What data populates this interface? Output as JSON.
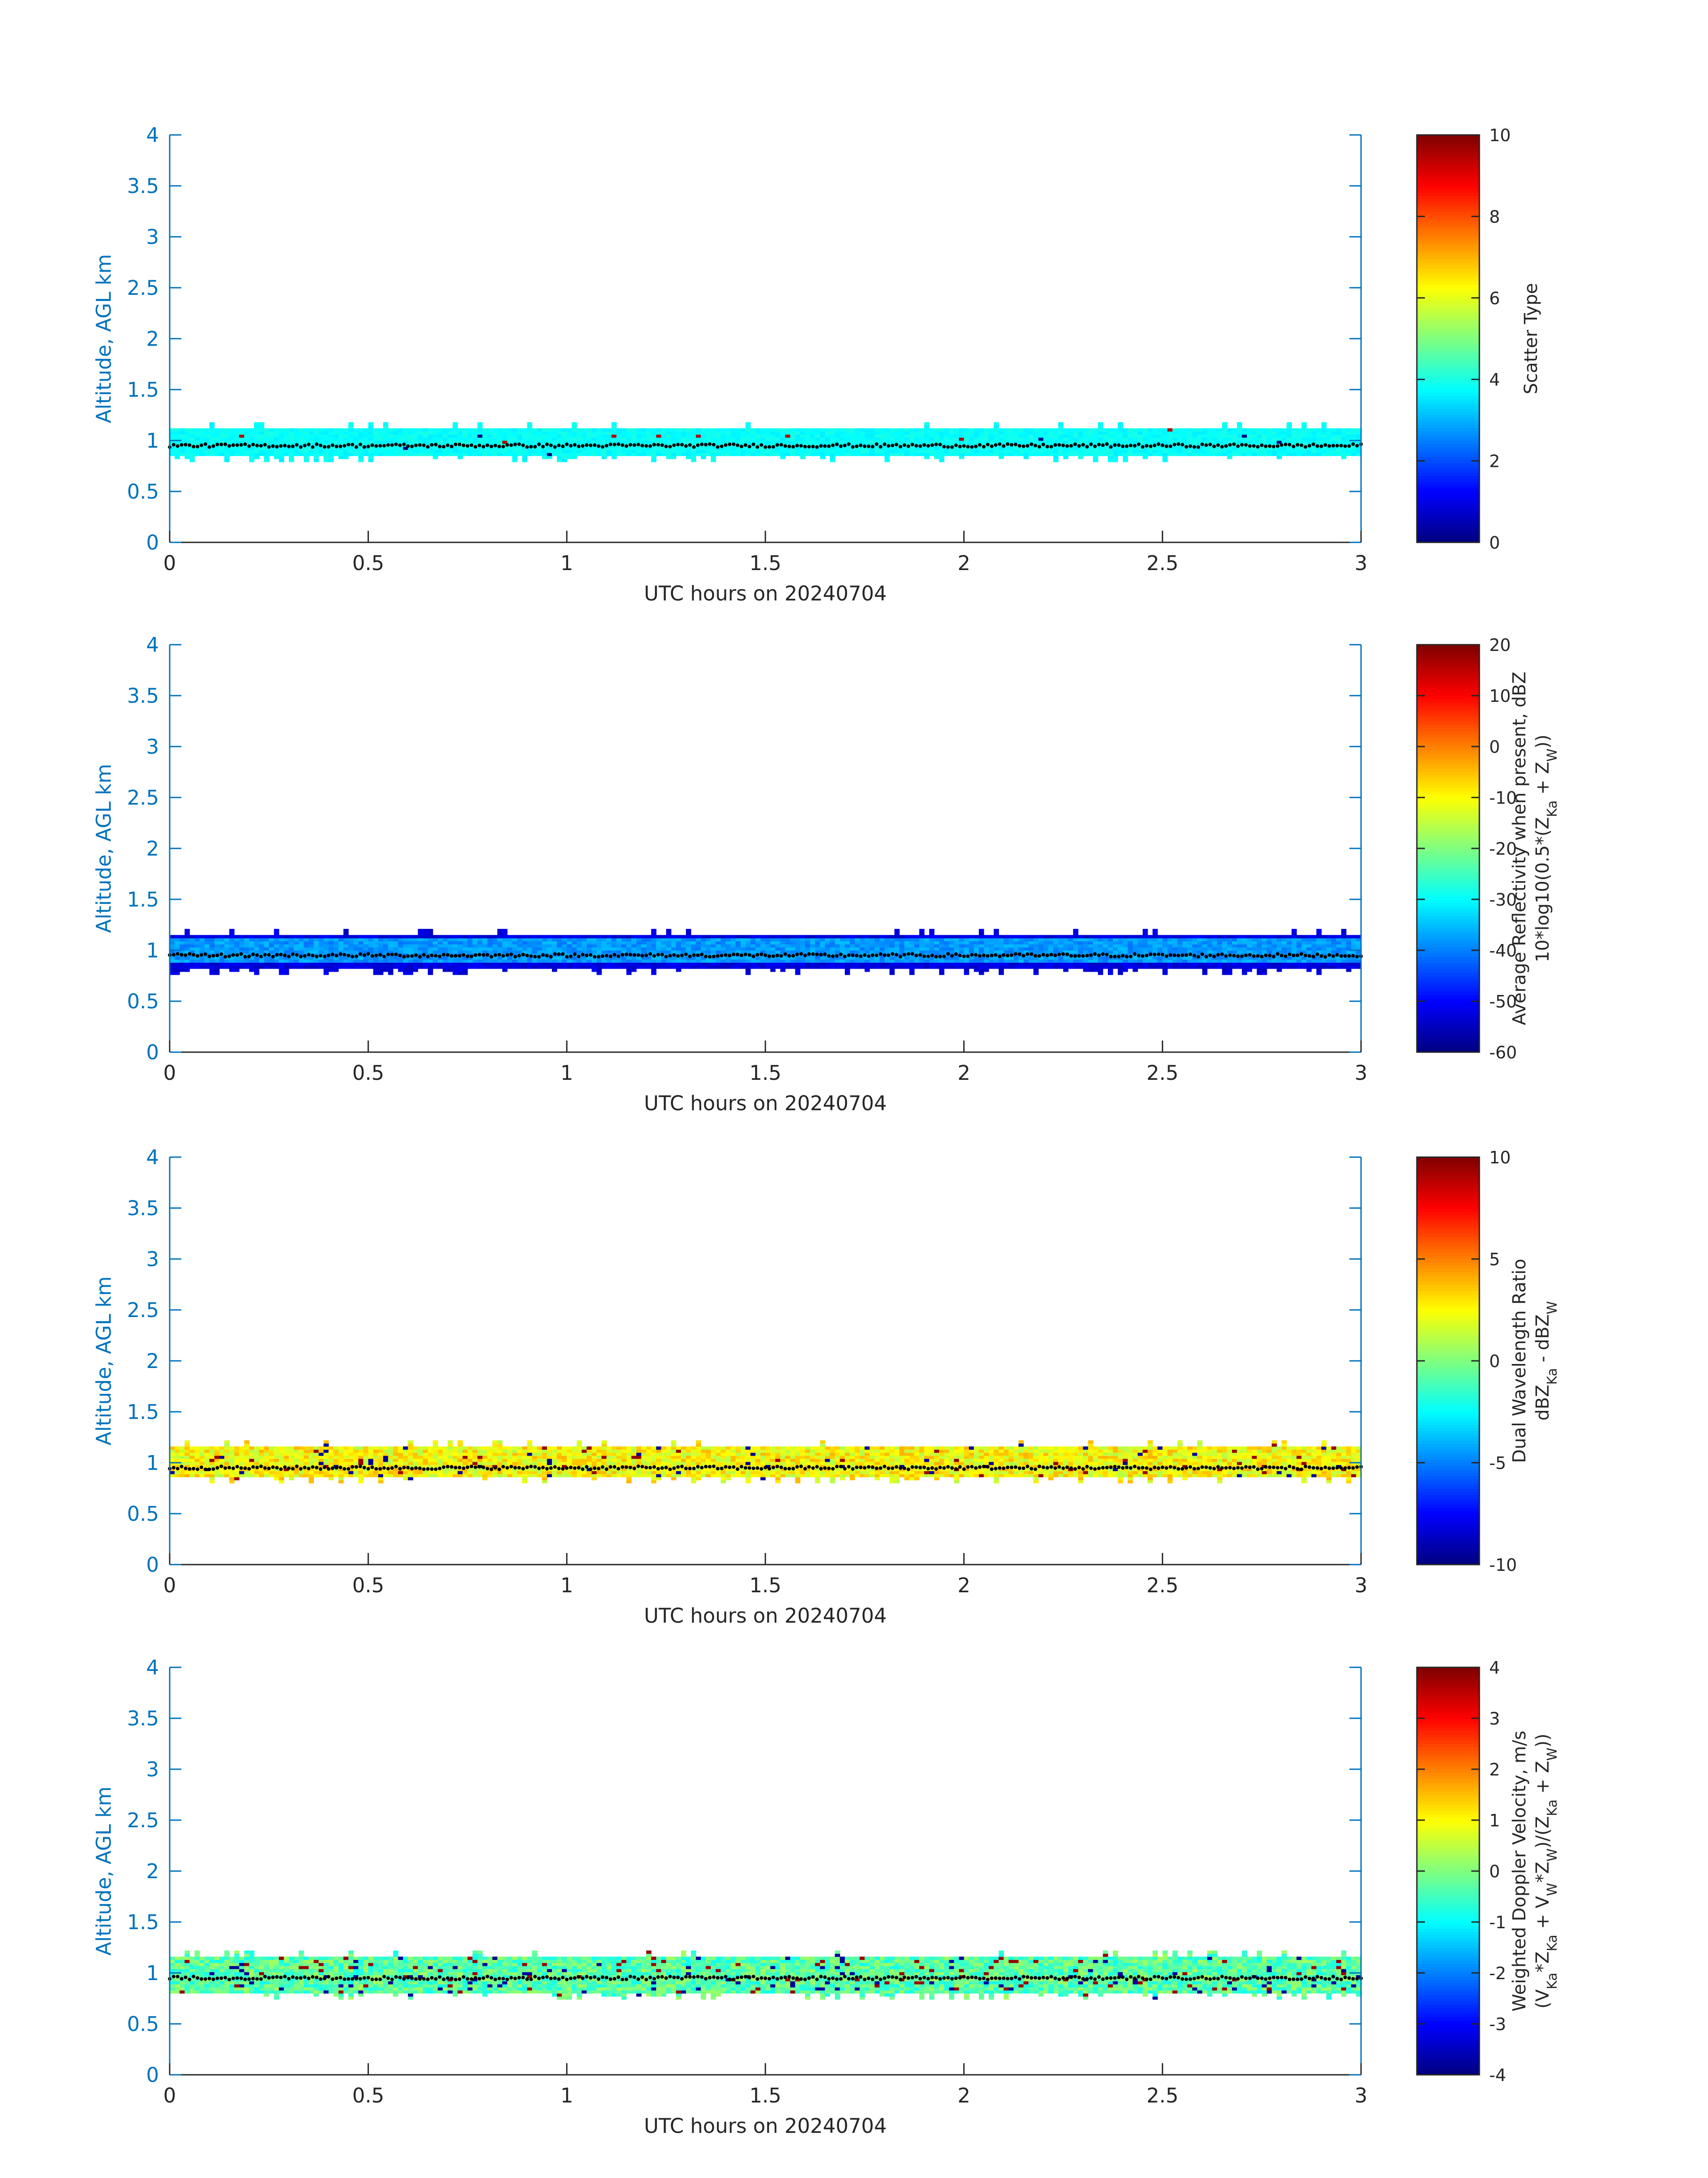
{
  "chart_data": [
    {
      "type": "heatmap",
      "title": "",
      "xlabel": "UTC hours on 20240704",
      "ylabel": "Altitude, AGL km",
      "xlim": [
        0,
        3
      ],
      "ylim": [
        0,
        4
      ],
      "xticks": [
        "0",
        "0.5",
        "1",
        "1.5",
        "2",
        "2.5",
        "3"
      ],
      "yticks": [
        "0",
        "0.5",
        "1",
        "1.5",
        "2",
        "2.5",
        "3",
        "3.5",
        "4"
      ],
      "colormap": "jet",
      "clim": [
        0,
        10
      ],
      "colorbar_ticks": [
        "0",
        "2",
        "4",
        "6",
        "8",
        "10"
      ],
      "colorbar_label_lines": [
        "Scatter Type"
      ],
      "band": {
        "bottom_km": 0.85,
        "top_km": 1.12,
        "dominant_value": 3.8,
        "variability": 0.2,
        "outlier_rate": 0.005
      },
      "cloud_base_km": 0.95
    },
    {
      "type": "heatmap",
      "title": "",
      "xlabel": "UTC hours on 20240704",
      "ylabel": "Altitude, AGL km",
      "xlim": [
        0,
        3
      ],
      "ylim": [
        0,
        4
      ],
      "xticks": [
        "0",
        "0.5",
        "1",
        "1.5",
        "2",
        "2.5",
        "3"
      ],
      "yticks": [
        "0",
        "0.5",
        "1",
        "1.5",
        "2",
        "2.5",
        "3",
        "3.5",
        "4"
      ],
      "colormap": "jet",
      "clim": [
        -60,
        20
      ],
      "colorbar_ticks": [
        "-60",
        "-50",
        "-40",
        "-30",
        "-20",
        "-10",
        "0",
        "10",
        "20"
      ],
      "colorbar_label_lines": [
        "Average Reflectivity when present, dBZ",
        "10*log10(0.5*(Z_Ka + Z_W))"
      ],
      "band": {
        "bottom_km": 0.82,
        "top_km": 1.15,
        "dominant_value": -38,
        "variability": 6,
        "outlier_rate": 0.0
      },
      "cloud_base_km": 0.95
    },
    {
      "type": "heatmap",
      "title": "",
      "xlabel": "UTC hours on 20240704",
      "ylabel": "Altitude, AGL km",
      "xlim": [
        0,
        3
      ],
      "ylim": [
        0,
        4
      ],
      "xticks": [
        "0",
        "0.5",
        "1",
        "1.5",
        "2",
        "2.5",
        "3"
      ],
      "yticks": [
        "0",
        "0.5",
        "1",
        "1.5",
        "2",
        "2.5",
        "3",
        "3.5",
        "4"
      ],
      "colormap": "jet",
      "clim": [
        -10,
        10
      ],
      "colorbar_ticks": [
        "-10",
        "-5",
        "0",
        "5",
        "10"
      ],
      "colorbar_label_lines": [
        "Dual Wavelength Ratio",
        "dBZ_Ka - dBZ_W"
      ],
      "band": {
        "bottom_km": 0.86,
        "top_km": 1.15,
        "dominant_value": 2.5,
        "variability": 1.5,
        "outlier_rate": 0.04
      },
      "cloud_base_km": 0.95
    },
    {
      "type": "heatmap",
      "title": "",
      "xlabel": "UTC hours on 20240704",
      "ylabel": "Altitude, AGL km",
      "xlim": [
        0,
        3
      ],
      "ylim": [
        0,
        4
      ],
      "xticks": [
        "0",
        "0.5",
        "1",
        "1.5",
        "2",
        "2.5",
        "3"
      ],
      "yticks": [
        "0",
        "0.5",
        "1",
        "1.5",
        "2",
        "2.5",
        "3",
        "3.5",
        "4"
      ],
      "colormap": "jet",
      "clim": [
        -4,
        4
      ],
      "colorbar_ticks": [
        "-4",
        "-3",
        "-2",
        "-1",
        "0",
        "1",
        "2",
        "3",
        "4"
      ],
      "colorbar_label_lines": [
        "Weighted Doppler Velocity, m/s",
        "(V_Ka*Z_Ka + V_W*Z_W)/(Z_Ka + Z_W))"
      ],
      "band": {
        "bottom_km": 0.8,
        "top_km": 1.15,
        "dominant_value": -0.3,
        "variability": 0.6,
        "outlier_rate": 0.06
      },
      "cloud_base_km": 0.95
    }
  ]
}
